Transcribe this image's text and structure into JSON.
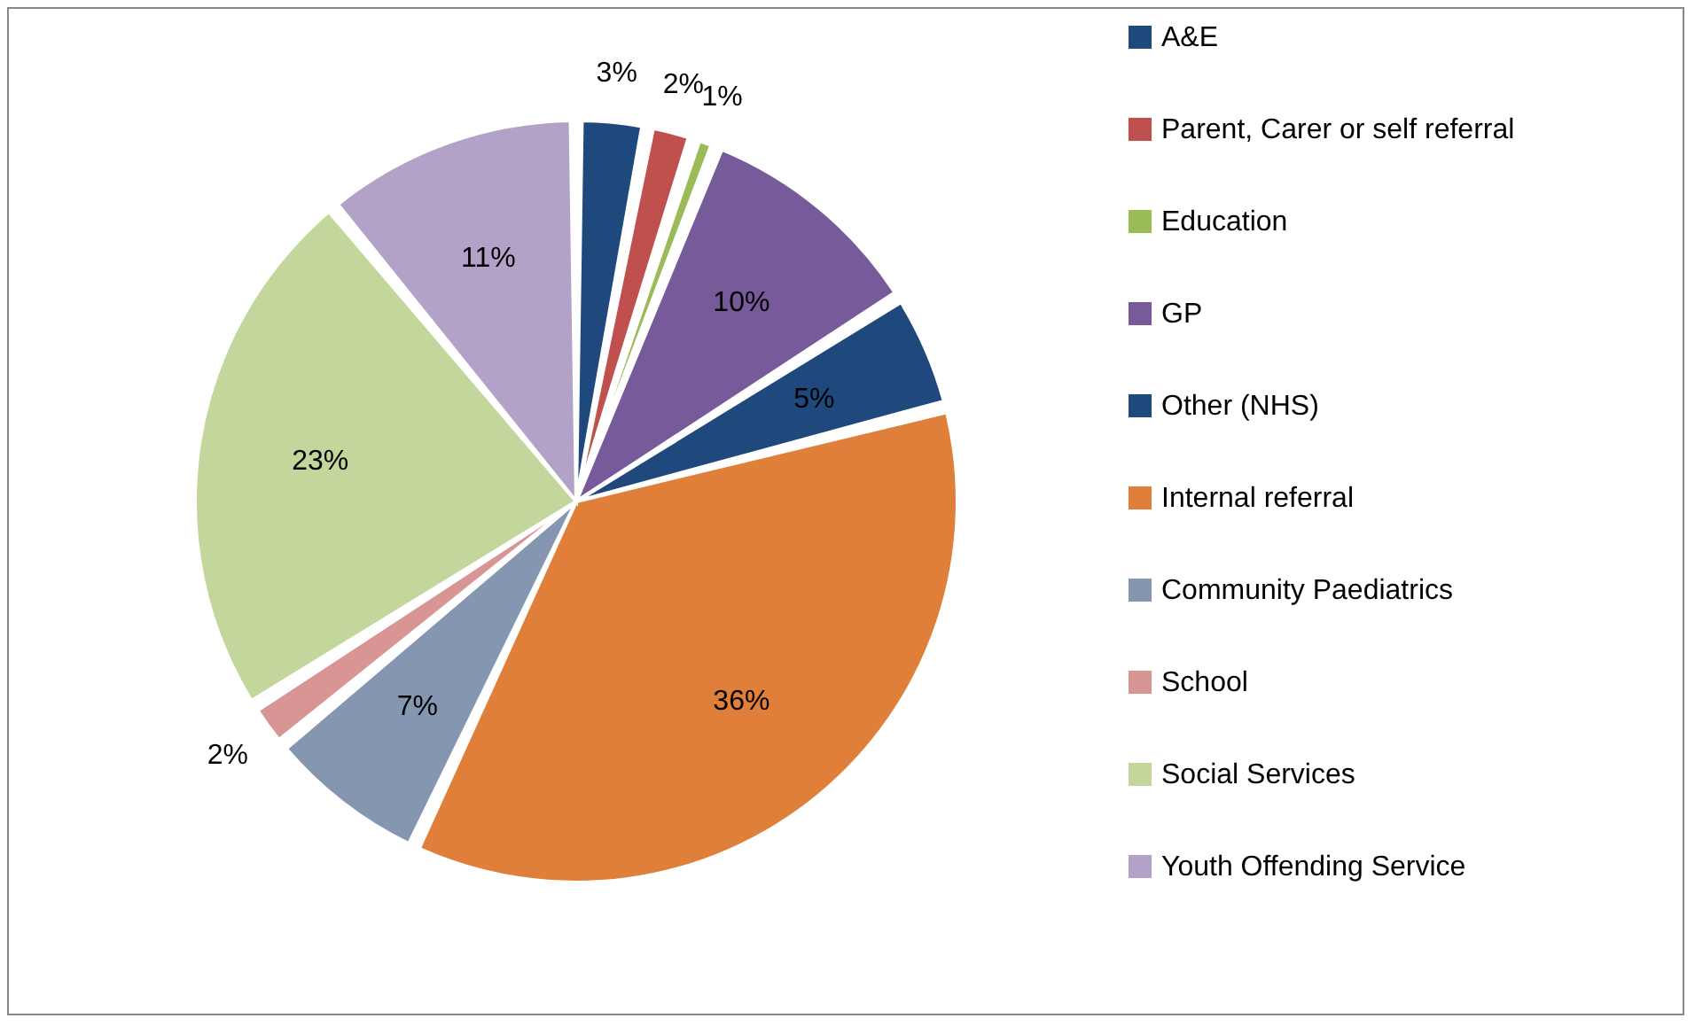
{
  "chart_data": {
    "type": "pie",
    "categories": [
      "A&E",
      "Parent, Carer or self referral",
      "Education",
      "GP",
      "Other (NHS)",
      "Internal referral",
      "Community Paediatrics",
      "School",
      "Social Services",
      "Youth Offending Service"
    ],
    "values": [
      3,
      2,
      1,
      10,
      5,
      36,
      7,
      2,
      23,
      11
    ],
    "value_labels": [
      "3%",
      "2%",
      "1%",
      "10%",
      "5%",
      "36%",
      "7%",
      "2%",
      "23%",
      "11%"
    ],
    "colors": [
      "#1f497d",
      "#c0504d",
      "#9bbb59",
      "#775a9a",
      "#1f497d",
      "#e07f3a",
      "#8496b0",
      "#d99594",
      "#c3d69b",
      "#b3a2c7"
    ],
    "legend": "right"
  }
}
